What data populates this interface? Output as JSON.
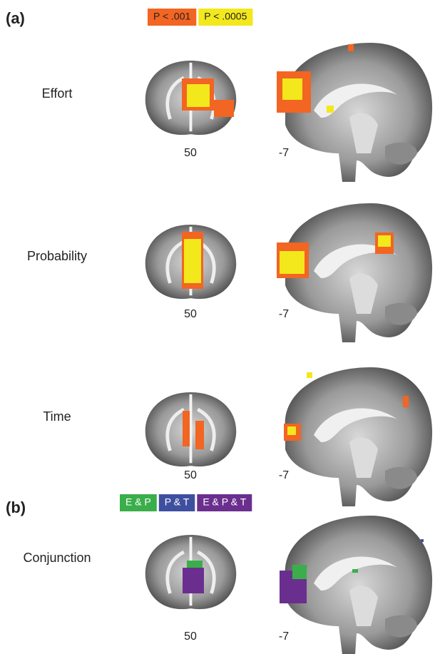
{
  "panels": [
    {
      "label": "(a)",
      "legend": [
        {
          "text": "P < .001",
          "color": "#f26522"
        },
        {
          "text": "P < .0005",
          "color": "#f2e81c"
        }
      ],
      "rows": [
        {
          "name": "Effort",
          "coronal_slice": "50",
          "sagittal_slice": "-7"
        },
        {
          "name": "Probability",
          "coronal_slice": "50",
          "sagittal_slice": "-7"
        },
        {
          "name": "Time",
          "coronal_slice": "50",
          "sagittal_slice": "-7"
        }
      ]
    },
    {
      "label": "(b)",
      "legend": [
        {
          "text": "E & P",
          "color": "#3aae4a"
        },
        {
          "text": "P & T",
          "color": "#3f4fa0"
        },
        {
          "text": "E & P & T",
          "color": "#6a2f8e"
        }
      ],
      "rows": [
        {
          "name": "Conjunction",
          "coronal_slice": "50",
          "sagittal_slice": "-7"
        }
      ]
    }
  ]
}
